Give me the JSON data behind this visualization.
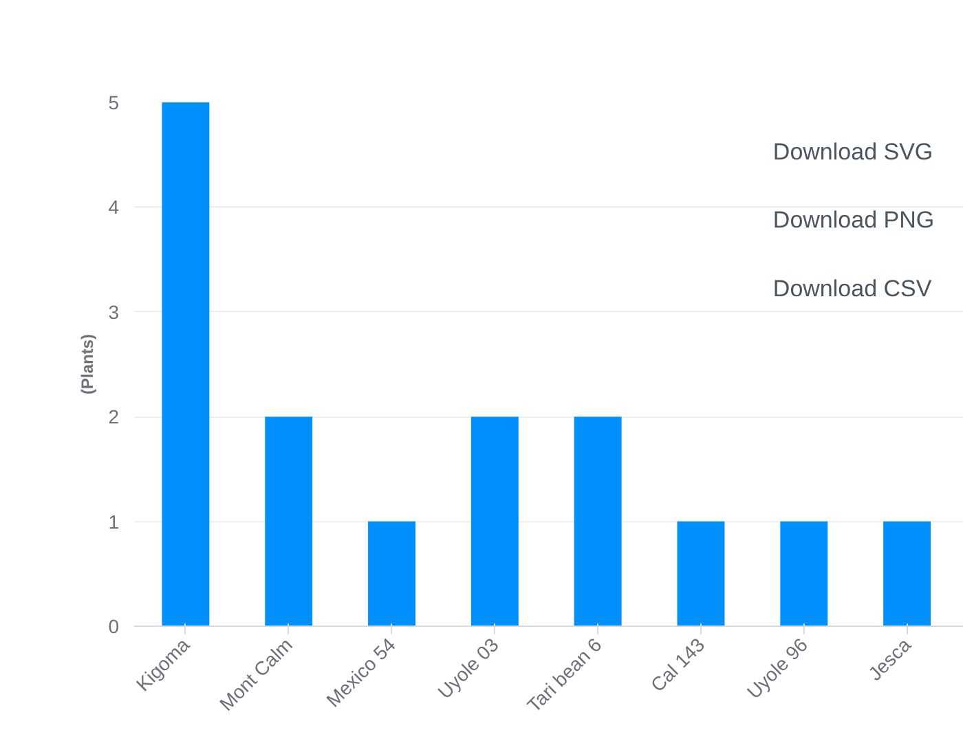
{
  "chart_data": {
    "type": "bar",
    "ylabel": "(Plants)",
    "categories": [
      "Kigoma",
      "Mont Calm",
      "Mexico 54",
      "Uyole 03",
      "Tari bean 6",
      "Cal 143",
      "Uyole 96",
      "Jesca"
    ],
    "values": [
      5,
      2,
      1,
      2,
      2,
      1,
      1,
      1
    ],
    "color": "#008ffb",
    "ylim": [
      0,
      5
    ],
    "yticks": [
      0,
      1,
      2,
      3,
      4,
      5
    ],
    "grid": "y",
    "annotations": [
      "Download SVG",
      "Download PNG",
      "Download CSV"
    ]
  }
}
